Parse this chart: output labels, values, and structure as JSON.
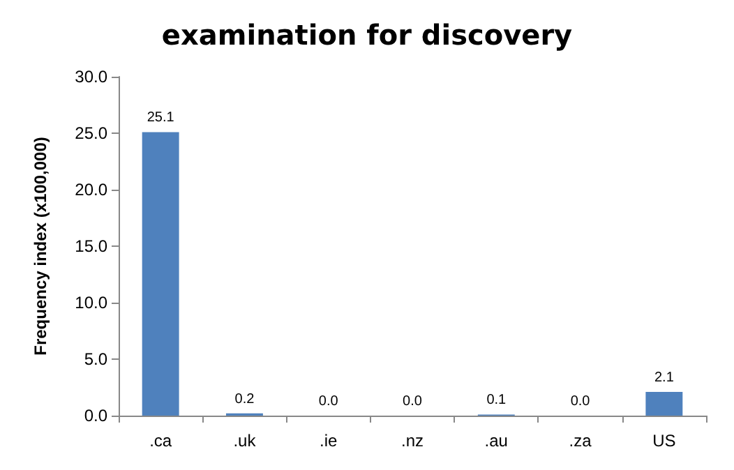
{
  "chart_data": {
    "type": "bar",
    "title": "examination for discovery",
    "ylabel": "Frequency index (x100,000)",
    "categories": [
      ".ca",
      ".uk",
      ".ie",
      ".nz",
      ".au",
      ".za",
      "US"
    ],
    "values": [
      25.1,
      0.2,
      0.0,
      0.0,
      0.1,
      0.0,
      2.1
    ],
    "value_labels": [
      "25.1",
      "0.2",
      "0.0",
      "0.0",
      "0.1",
      "0.0",
      "2.1"
    ],
    "color": "#4f81bd",
    "ylim": [
      0,
      30
    ],
    "yticks": [
      {
        "value": 0,
        "label": "0.0"
      },
      {
        "value": 5,
        "label": "5.0"
      },
      {
        "value": 10,
        "label": "10.0"
      },
      {
        "value": 15,
        "label": "15.0"
      },
      {
        "value": 20,
        "label": "20.0"
      },
      {
        "value": 25,
        "label": "25.0"
      },
      {
        "value": 30,
        "label": "30.0"
      }
    ],
    "grid": false
  }
}
